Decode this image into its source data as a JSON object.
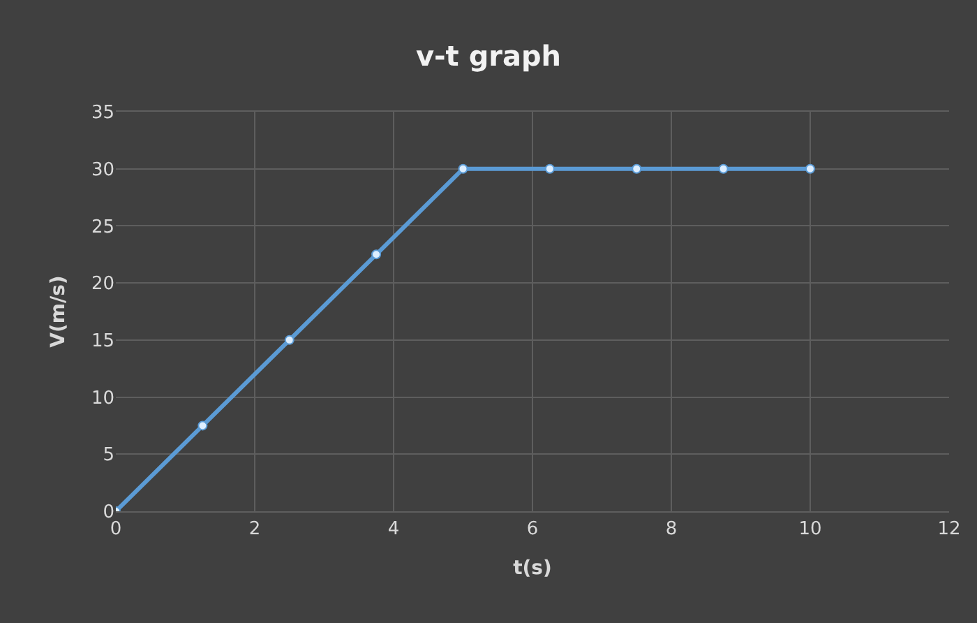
{
  "chart_data": {
    "type": "line",
    "title": "v-t graph",
    "xlabel": "t(s)",
    "ylabel": "V(m/s)",
    "x": [
      0,
      1.25,
      2.5,
      3.75,
      5,
      6.25,
      7.5,
      8.75,
      10
    ],
    "series": [
      {
        "color": "#5b9bd5",
        "values": [
          0,
          7.5,
          15,
          22.5,
          30,
          30,
          30,
          30,
          30
        ]
      }
    ],
    "xlim": [
      0,
      12
    ],
    "xticks": [
      0,
      2,
      4,
      6,
      8,
      10,
      12
    ],
    "ylim": [
      0,
      35
    ],
    "yticks": [
      0,
      5,
      10,
      15,
      20,
      25,
      30,
      35
    ],
    "grid": true,
    "marker": "circle",
    "line_style": "solid"
  }
}
